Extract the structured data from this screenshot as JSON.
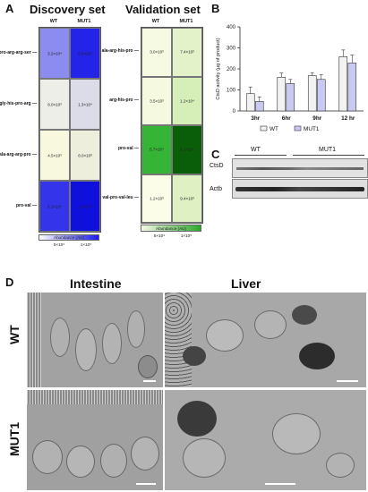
{
  "panels": {
    "A": "A",
    "B": "B",
    "C": "C",
    "D": "D"
  },
  "heatmap_discovery": {
    "title": "Discovery set",
    "columns": [
      "WT",
      "MUT1"
    ],
    "rows": [
      {
        "label": "pro-arg-arg-ser",
        "values": [
          "3.2×10⁴",
          "6.9×10⁴"
        ],
        "colors": [
          "#8c8cf0",
          "#2424e8"
        ]
      },
      {
        "label": "gly-his-pro-arg",
        "values": [
          "8.0×10³",
          "1.3×10⁴"
        ],
        "colors": [
          "#eeeee8",
          "#dcdce8"
        ]
      },
      {
        "label": "ala-arg-arg-pro",
        "values": [
          "4.5×10³",
          "8.0×10³"
        ],
        "colors": [
          "#f8f8df",
          "#eeeedd"
        ]
      },
      {
        "label": "pro-val",
        "values": [
          "6.1×10⁴",
          "1.1×10⁵"
        ],
        "colors": [
          "#3434ea",
          "#1010dd"
        ]
      }
    ],
    "legend": {
      "title": "Abundance (AU)",
      "ticks": [
        "5×10⁴",
        "1×10⁵"
      ]
    }
  },
  "heatmap_validation": {
    "title": "Validation set",
    "columns": [
      "WT",
      "MUT1"
    ],
    "rows": [
      {
        "label": "ala-arg-his-pro",
        "values": [
          "3.0×10³",
          "7.4×10³"
        ],
        "colors": [
          "#f6fae2",
          "#e3f2c8"
        ]
      },
      {
        "label": "arg-his-pro",
        "values": [
          "3.5×10³",
          "1.2×10⁴"
        ],
        "colors": [
          "#f4f9df",
          "#d6eeb8"
        ]
      },
      {
        "label": "pro-val",
        "values": [
          "5.7×10⁴",
          "1.1×10⁵"
        ],
        "colors": [
          "#36b436",
          "#0a5e0a"
        ]
      },
      {
        "label": "val-pro-val-leu",
        "values": [
          "1.2×10³",
          "9.4×10³"
        ],
        "colors": [
          "#fbfde9",
          "#dff0c2"
        ]
      }
    ],
    "legend": {
      "title": "Abundance (AU)",
      "ticks": [
        "5×10⁴",
        "1×10⁵"
      ]
    }
  },
  "chart_data": {
    "type": "bar",
    "categories": [
      "3hr",
      "6hr",
      "9hr",
      "12 hr"
    ],
    "series": [
      {
        "name": "WT",
        "values": [
          82,
          160,
          168,
          258
        ],
        "errors": [
          32,
          20,
          14,
          32
        ],
        "color": "#f2f2f2"
      },
      {
        "name": "MUT1",
        "values": [
          45,
          130,
          150,
          228
        ],
        "errors": [
          22,
          20,
          22,
          38
        ],
        "color": "#c9c9f2"
      }
    ],
    "ylabel": "CtsD activity (µg of product)",
    "ylim": [
      0,
      400
    ],
    "yticks": [
      0,
      100,
      200,
      300,
      400
    ],
    "legend": [
      "WT",
      "MUT1"
    ]
  },
  "blot": {
    "groups": [
      "WT",
      "MUT1"
    ],
    "rows": [
      "CtsD",
      "Actb"
    ]
  },
  "em": {
    "columns": [
      "Intestine",
      "Liver"
    ],
    "rows": [
      "WT",
      "MUT1"
    ]
  }
}
